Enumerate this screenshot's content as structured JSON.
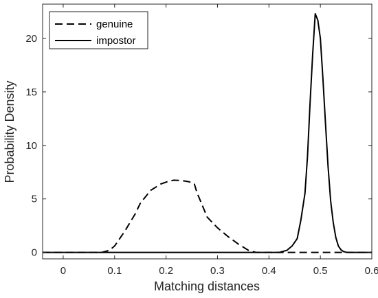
{
  "chart_data": {
    "type": "line",
    "xlabel": "Matching distances",
    "ylabel": "Probability Density",
    "xlim": [
      -0.04,
      0.6
    ],
    "ylim": [
      -0.6,
      23.2
    ],
    "xticks": [
      0,
      0.1,
      0.2,
      0.3,
      0.4,
      0.5,
      0.6
    ],
    "xtick_labels": [
      "0",
      "0.1",
      "0.2",
      "0.3",
      "0.4",
      "0.5",
      "0.6"
    ],
    "yticks": [
      0,
      5,
      10,
      15,
      20
    ],
    "ytick_labels": [
      "0",
      "5",
      "10",
      "15",
      "20"
    ],
    "grid": false,
    "legend_position": "top-left",
    "series": [
      {
        "name": "genuine",
        "style": "dashed",
        "color": "#000000",
        "x": [
          -0.04,
          0.075,
          0.09,
          0.1,
          0.12,
          0.14,
          0.15,
          0.17,
          0.19,
          0.205,
          0.215,
          0.23,
          0.245,
          0.255,
          0.26,
          0.28,
          0.3,
          0.32,
          0.34,
          0.36,
          0.375,
          0.6
        ],
        "y": [
          0,
          0,
          0.2,
          0.6,
          2.0,
          3.6,
          4.6,
          5.8,
          6.4,
          6.65,
          6.75,
          6.72,
          6.6,
          6.4,
          5.6,
          3.3,
          2.3,
          1.5,
          0.8,
          0.2,
          0,
          0
        ]
      },
      {
        "name": "impostor",
        "style": "solid",
        "color": "#000000",
        "x": [
          -0.04,
          0.42,
          0.435,
          0.445,
          0.455,
          0.462,
          0.47,
          0.475,
          0.48,
          0.485,
          0.49,
          0.495,
          0.5,
          0.505,
          0.51,
          0.515,
          0.52,
          0.525,
          0.53,
          0.535,
          0.54,
          0.545,
          0.55,
          0.56,
          0.575,
          0.6
        ],
        "y": [
          0,
          0,
          0.2,
          0.6,
          1.3,
          3.0,
          5.5,
          9.0,
          14.0,
          18.5,
          22.3,
          21.7,
          20.0,
          16.2,
          12.0,
          8.0,
          4.8,
          2.8,
          1.4,
          0.6,
          0.25,
          0.08,
          0.02,
          0,
          0,
          0
        ]
      }
    ]
  }
}
